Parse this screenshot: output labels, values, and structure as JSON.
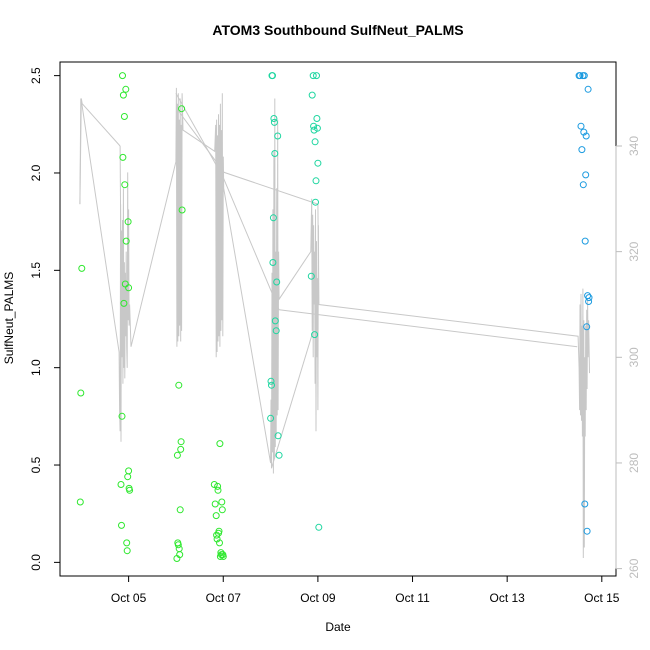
{
  "chart_data": {
    "type": "scatter",
    "title": "ATOM3 Southbound SulfNeut_PALMS",
    "xlabel": "Date",
    "ylabel": "SulfNeut_PALMS",
    "y2label": "",
    "x_ticks": [
      "Oct 05",
      "Oct 07",
      "Oct 09",
      "Oct 11",
      "Oct 13",
      "Oct 15"
    ],
    "x_tick_days": [
      5,
      7,
      9,
      11,
      13,
      15
    ],
    "xlim": [
      3.55,
      15.3
    ],
    "ylim": [
      -0.07,
      2.57
    ],
    "y_ticks": [
      "0.0",
      "0.5",
      "1.0",
      "1.5",
      "2.0",
      "2.5"
    ],
    "y_tick_values": [
      0,
      0.5,
      1.0,
      1.5,
      2.0,
      2.5
    ],
    "y2lim": [
      258.6,
      355.9
    ],
    "y2_ticks": [
      "260",
      "280",
      "300",
      "320",
      "340"
    ],
    "y2_tick_values": [
      260,
      280,
      300,
      320,
      340
    ],
    "grid": false,
    "legend": "none",
    "colors": {
      "points_early": "#2ee82e",
      "points_mid": "#1ed6a0",
      "points_late": "#1c9be0",
      "line": "#c8c8c8",
      "axis": "#000000",
      "right_axis": "#bdbdbd"
    },
    "series": [
      {
        "color": "#2ee82e",
        "x": [
          3.98,
          3.99,
          4.01,
          4.84,
          4.85,
          4.86,
          4.87,
          4.88,
          4.89,
          4.9,
          4.91,
          4.92,
          4.93,
          4.94,
          4.95,
          4.96,
          4.97,
          4.98,
          4.99,
          5.0,
          5.0,
          5.01,
          5.02,
          6.02,
          6.03,
          6.04,
          6.05,
          6.06,
          6.07,
          6.08,
          6.09,
          6.1,
          6.11,
          6.12,
          6.13,
          6.81,
          6.83,
          6.85,
          6.86,
          6.87,
          6.88,
          6.89,
          6.9,
          6.91,
          6.92,
          6.93,
          6.94,
          6.95,
          6.96,
          6.97,
          6.98,
          6.99,
          7.0
        ],
        "y": [
          0.31,
          0.87,
          1.51,
          0.4,
          0.19,
          0.75,
          2.5,
          2.08,
          2.4,
          1.33,
          2.29,
          1.94,
          1.43,
          2.43,
          1.65,
          0.1,
          0.06,
          0.44,
          1.75,
          1.41,
          0.47,
          0.38,
          0.37,
          0.02,
          0.55,
          0.1,
          0.09,
          0.91,
          0.07,
          0.04,
          0.27,
          0.58,
          0.62,
          2.33,
          1.81,
          0.4,
          0.3,
          0.24,
          0.14,
          0.12,
          0.39,
          0.37,
          0.15,
          0.16,
          0.1,
          0.61,
          0.03,
          0.05,
          0.04,
          0.31,
          0.27,
          0.04,
          0.03
        ]
      },
      {
        "color": "#1ed6a0",
        "x": [
          8.0,
          8.01,
          8.02,
          8.03,
          8.04,
          8.05,
          8.06,
          8.07,
          8.08,
          8.09,
          8.1,
          8.12,
          8.13,
          8.15,
          8.16,
          8.18,
          8.86,
          8.88,
          8.9,
          8.91,
          8.92,
          8.93,
          8.94,
          8.95,
          8.96,
          8.97,
          8.98,
          8.99,
          9.0,
          9.02
        ],
        "y": [
          0.74,
          0.93,
          0.91,
          2.5,
          2.5,
          1.54,
          1.77,
          2.28,
          2.26,
          2.1,
          1.24,
          1.19,
          1.44,
          2.19,
          0.65,
          0.55,
          1.47,
          2.4,
          2.5,
          2.24,
          2.22,
          1.17,
          2.16,
          1.85,
          1.96,
          2.5,
          2.28,
          2.23,
          2.05,
          0.18
        ]
      },
      {
        "color": "#1c9be0",
        "x": [
          14.52,
          14.54,
          14.56,
          14.58,
          14.6,
          14.61,
          14.62,
          14.63,
          14.64,
          14.65,
          14.66,
          14.67,
          14.68,
          14.69,
          14.7,
          14.71,
          14.72,
          14.73
        ],
        "y": [
          2.5,
          2.5,
          2.24,
          2.12,
          2.5,
          1.94,
          2.21,
          2.5,
          0.3,
          1.65,
          1.99,
          2.19,
          1.21,
          0.16,
          1.37,
          2.43,
          1.34,
          1.36
        ]
      }
    ],
    "line_series": {
      "axis": "right",
      "x": [
        3.97,
        3.99,
        4.01,
        4.8,
        4.81,
        4.82,
        4.83,
        4.84,
        4.85,
        4.86,
        4.87,
        4.88,
        4.89,
        4.9,
        4.91,
        4.92,
        4.93,
        4.94,
        4.95,
        4.96,
        4.97,
        4.98,
        4.99,
        5.0,
        5.01,
        5.02,
        5.05,
        6.0,
        6.01,
        6.02,
        6.03,
        6.04,
        6.05,
        6.06,
        6.07,
        6.08,
        6.09,
        6.1,
        6.11,
        6.12,
        6.13,
        6.15,
        6.82,
        6.84,
        6.85,
        6.86,
        6.87,
        6.88,
        6.89,
        6.9,
        6.91,
        6.92,
        6.93,
        6.94,
        6.95,
        6.96,
        6.97,
        6.98,
        6.99,
        7.0,
        7.01,
        8.0,
        8.01,
        8.02,
        8.03,
        8.04,
        8.05,
        8.06,
        8.07,
        8.08,
        8.09,
        8.1,
        8.11,
        8.12,
        8.13,
        8.14,
        8.15,
        8.16,
        8.17,
        8.18,
        8.85,
        8.87,
        8.88,
        8.89,
        8.9,
        8.91,
        8.92,
        8.93,
        8.94,
        8.95,
        8.96,
        8.97,
        8.98,
        8.99,
        9.0,
        9.01,
        9.02,
        14.5,
        14.52,
        14.53,
        14.54,
        14.55,
        14.56,
        14.57,
        14.58,
        14.59,
        14.6,
        14.61,
        14.62,
        14.63,
        14.64,
        14.65,
        14.66,
        14.67,
        14.68,
        14.69,
        14.7,
        14.71,
        14.72,
        14.73,
        14.74
      ],
      "y": [
        329,
        349,
        348,
        301,
        290,
        286,
        329,
        284,
        324,
        300,
        326,
        295,
        332,
        298,
        318,
        296,
        316,
        304,
        320,
        302,
        298,
        335,
        307,
        328,
        306,
        310,
        302,
        337,
        351,
        302,
        348,
        303,
        350,
        304,
        345,
        306,
        349,
        303,
        344,
        305,
        350,
        343,
        339,
        344,
        300,
        345,
        301,
        342,
        303,
        346,
        304,
        344,
        302,
        348,
        305,
        343,
        307,
        350,
        304,
        338,
        332,
        280,
        292,
        279,
        316,
        282,
        328,
        278,
        339,
        281,
        349,
        283,
        320,
        285,
        332,
        289,
        345,
        290,
        320,
        311,
        320,
        330,
        305,
        327,
        300,
        325,
        310,
        320,
        295,
        328,
        286,
        322,
        300,
        315,
        290,
        325,
        310,
        304,
        298,
        290,
        310,
        289,
        312,
        288,
        306,
        285,
        313,
        262,
        307,
        264,
        300,
        285,
        306,
        290,
        309,
        294,
        311,
        300,
        307,
        303,
        297
      ]
    },
    "line_segments": [
      {
        "x": [
          3.97,
          4.0,
          4.02,
          4.82
        ],
        "y": [
          329,
          349,
          348,
          340
        ]
      },
      {
        "x": [
          4.82,
          4.85
        ],
        "y": [
          340,
          303
        ]
      },
      {
        "x": [
          6.0,
          7.0,
          8.18
        ],
        "y": [
          350,
          334,
          309
        ]
      },
      {
        "x": [
          6.02,
          7.02,
          9.0,
          9.02
        ],
        "y": [
          347,
          335,
          329,
          310
        ]
      },
      {
        "x": [
          8.18,
          14.48
        ],
        "y": [
          309,
          302
        ]
      },
      {
        "x": [
          8.02,
          8.9
        ],
        "y": [
          279,
          305
        ]
      }
    ]
  }
}
